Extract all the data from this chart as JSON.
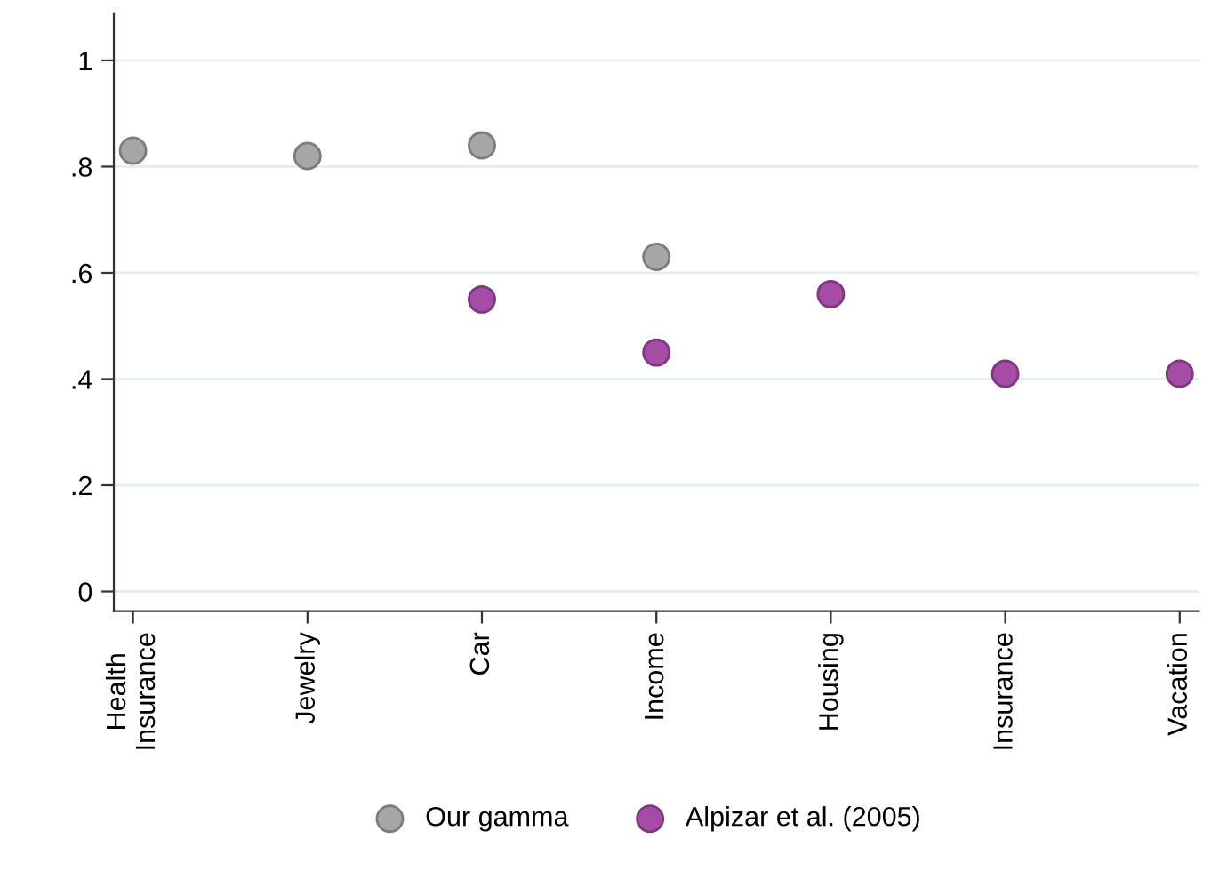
{
  "chart_data": {
    "type": "scatter",
    "categories": [
      "Health\nInsurance",
      "Jewelry",
      "Car",
      "Income",
      "Housing",
      "Insurance",
      "Vacation"
    ],
    "series": [
      {
        "name": "Our gamma",
        "color": "#a6a6a6",
        "values": [
          0.83,
          0.82,
          0.84,
          0.63,
          null,
          null,
          null
        ]
      },
      {
        "name": "Alpizar et al. (2005)",
        "color": "#a64ca6",
        "values": [
          null,
          null,
          0.55,
          0.45,
          0.56,
          0.41,
          0.41
        ]
      }
    ],
    "ylim": [
      -0.037,
      1.087
    ],
    "yticks": [
      0,
      {
        "value": 0.2,
        "label": ".2"
      },
      {
        "value": 0.4,
        "label": ".4"
      },
      {
        "value": 0.6,
        "label": ".6"
      },
      {
        "value": 0.8,
        "label": ".8"
      },
      1
    ],
    "grid": "y",
    "legend": "bottom",
    "marker": "circle"
  }
}
